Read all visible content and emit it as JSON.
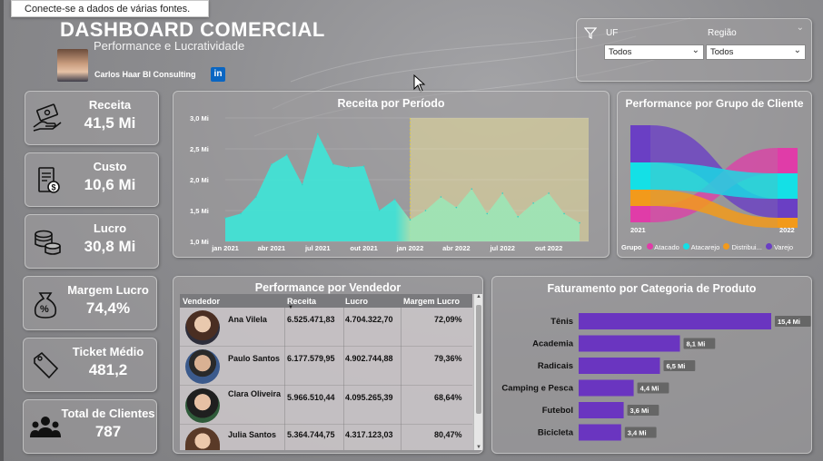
{
  "tooltip": "Conecte-se a dados de várias fontes.",
  "header": {
    "title": "DASHBOARD COMERCIAL",
    "subtitle": "Performance e Lucratividade",
    "author": "Carlos Haar BI Consulting",
    "linkedin": "in"
  },
  "filters": {
    "uf_label": "UF",
    "uf_value": "Todos",
    "regiao_label": "Região",
    "regiao_value": "Todos"
  },
  "kpis": [
    {
      "label": "Receita",
      "value": "41,5 Mi",
      "icon": "money-hand-icon"
    },
    {
      "label": "Custo",
      "value": "10,6 Mi",
      "icon": "bill-icon"
    },
    {
      "label": "Lucro",
      "value": "30,8 Mi",
      "icon": "coins-icon"
    },
    {
      "label": "Margem Lucro",
      "value": "74,4%",
      "icon": "percent-bag-icon"
    },
    {
      "label": "Ticket Médio",
      "value": "481,2",
      "icon": "price-tag-icon"
    },
    {
      "label": "Total de Clientes",
      "value": "787",
      "icon": "users-icon"
    }
  ],
  "receita_periodo": {
    "title": "Receita por Período",
    "y_ticks": [
      "3,0 Mi",
      "2,5 Mi",
      "2,0 Mi",
      "1,5 Mi",
      "1,0 Mi"
    ],
    "x_ticks": [
      "jan 2021",
      "abr 2021",
      "jul 2021",
      "out 2021",
      "jan 2022",
      "abr 2022",
      "jul 2022",
      "out 2022"
    ]
  },
  "grupo_cliente": {
    "title": "Performance por Grupo de Cliente",
    "year_left": "2021",
    "year_right": "2022",
    "legend_title": "Grupo",
    "legend": [
      {
        "name": "Atacado",
        "color": "#e03ca8"
      },
      {
        "name": "Atacarejo",
        "color": "#14e0e6"
      },
      {
        "name": "Distribui...",
        "color": "#f29a1b"
      },
      {
        "name": "Varejo",
        "color": "#6a3fc4"
      }
    ]
  },
  "vendedores": {
    "title": "Performance por Vendedor",
    "columns": [
      "Vendedor",
      "Receita",
      "Lucro",
      "Margem Lucro"
    ],
    "rows": [
      {
        "nome": "Ana Vilela",
        "receita": "6.525.471,83",
        "lucro": "4.704.322,70",
        "margem": "72,09%"
      },
      {
        "nome": "Paulo Santos",
        "receita": "6.177.579,95",
        "lucro": "4.902.744,88",
        "margem": "79,36%"
      },
      {
        "nome": "Clara Oliveira",
        "receita": "5.966.510,44",
        "lucro": "4.095.265,39",
        "margem": "68,64%"
      },
      {
        "nome": "Julia Santos",
        "receita": "5.364.744,75",
        "lucro": "4.317.123,03",
        "margem": "80,47%"
      }
    ]
  },
  "faturamento": {
    "title": "Faturamento por Categoria de Produto",
    "bar_color": "#6a35c0"
  },
  "chart_data": [
    {
      "type": "area",
      "title": "Receita por Período",
      "ylim": [
        1.0,
        3.0
      ],
      "x": [
        "jan 2021",
        "fev 2021",
        "mar 2021",
        "abr 2021",
        "mai 2021",
        "jun 2021",
        "jul 2021",
        "ago 2021",
        "set 2021",
        "out 2021",
        "nov 2021",
        "dez 2021",
        "jan 2022",
        "fev 2022",
        "mar 2022",
        "abr 2022",
        "mai 2022",
        "jun 2022",
        "jul 2022",
        "ago 2022",
        "set 2022",
        "out 2022",
        "nov 2022",
        "dez 2022"
      ],
      "values": [
        1.38,
        1.45,
        1.72,
        2.25,
        2.4,
        1.92,
        2.74,
        2.25,
        2.2,
        2.22,
        1.5,
        1.68,
        1.35,
        1.5,
        1.72,
        1.55,
        1.85,
        1.45,
        1.78,
        1.4,
        1.62,
        1.78,
        1.45,
        1.3
      ],
      "highlight_from": "jan 2022"
    },
    {
      "type": "bar",
      "title": "Faturamento por Categoria de Produto",
      "categories": [
        "Tênis",
        "Academia",
        "Radicais",
        "Camping e Pesca",
        "Futebol",
        "Bicicleta"
      ],
      "values": [
        15.4,
        8.1,
        6.5,
        4.4,
        3.6,
        3.4
      ],
      "labels": [
        "15,4 Mi",
        "8,1 Mi",
        "6,5 Mi",
        "4,4 Mi",
        "3,6 Mi",
        "3,4 Mi"
      ]
    }
  ]
}
